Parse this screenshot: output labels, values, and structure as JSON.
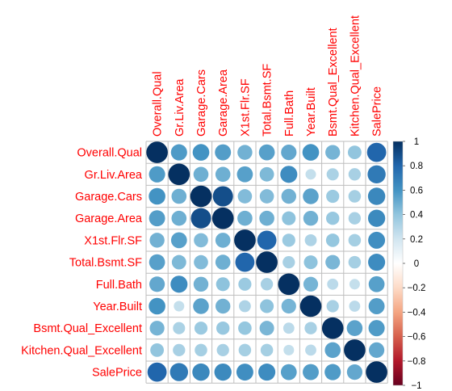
{
  "chart_data": {
    "type": "heatmap",
    "variables": [
      "Overall.Qual",
      "Gr.Liv.Area",
      "Garage.Cars",
      "Garage.Area",
      "X1st.Flr.SF",
      "Total.Bsmt.SF",
      "Full.Bath",
      "Year.Built",
      "Bsmt.Qual_Excellent",
      "Kitchen.Qual_Excellent",
      "SalePrice"
    ],
    "matrix": [
      [
        1.0,
        0.57,
        0.6,
        0.56,
        0.48,
        0.55,
        0.52,
        0.6,
        0.47,
        0.4,
        0.8
      ],
      [
        0.57,
        1.0,
        0.49,
        0.49,
        0.55,
        0.45,
        0.63,
        0.24,
        0.32,
        0.33,
        0.71
      ],
      [
        0.6,
        0.49,
        1.0,
        0.89,
        0.44,
        0.44,
        0.48,
        0.54,
        0.37,
        0.34,
        0.65
      ],
      [
        0.56,
        0.49,
        0.89,
        1.0,
        0.49,
        0.49,
        0.41,
        0.48,
        0.38,
        0.33,
        0.64
      ],
      [
        0.48,
        0.55,
        0.44,
        0.49,
        1.0,
        0.8,
        0.37,
        0.31,
        0.39,
        0.34,
        0.62
      ],
      [
        0.55,
        0.45,
        0.44,
        0.49,
        0.8,
        1.0,
        0.33,
        0.41,
        0.46,
        0.34,
        0.63
      ],
      [
        0.52,
        0.63,
        0.48,
        0.41,
        0.37,
        0.33,
        1.0,
        0.47,
        0.27,
        0.24,
        0.55
      ],
      [
        0.6,
        0.24,
        0.54,
        0.48,
        0.31,
        0.41,
        0.47,
        1.0,
        0.33,
        0.27,
        0.56
      ],
      [
        0.47,
        0.32,
        0.37,
        0.38,
        0.39,
        0.46,
        0.27,
        0.33,
        1.0,
        0.54,
        0.57
      ],
      [
        0.4,
        0.33,
        0.34,
        0.33,
        0.34,
        0.34,
        0.24,
        0.27,
        0.54,
        1.0,
        0.52
      ],
      [
        0.8,
        0.71,
        0.65,
        0.64,
        0.62,
        0.63,
        0.55,
        0.56,
        0.57,
        0.52,
        1.0
      ]
    ],
    "colorbar": {
      "range": [
        -1,
        1
      ],
      "ticks": [
        "1",
        "0.8",
        "0.6",
        "0.4",
        "0.2",
        "0",
        "−0.2",
        "−0.4",
        "−0.6",
        "−0.8",
        "−1"
      ],
      "colors": [
        "#053061",
        "#2166ac",
        "#4393c3",
        "#92c5de",
        "#d1e5f0",
        "#ffffff",
        "#fddbc7",
        "#f4a582",
        "#d6604d",
        "#b2182b",
        "#67001f"
      ]
    },
    "label_color": "#ff0000",
    "grid_color": "#bebebe"
  }
}
